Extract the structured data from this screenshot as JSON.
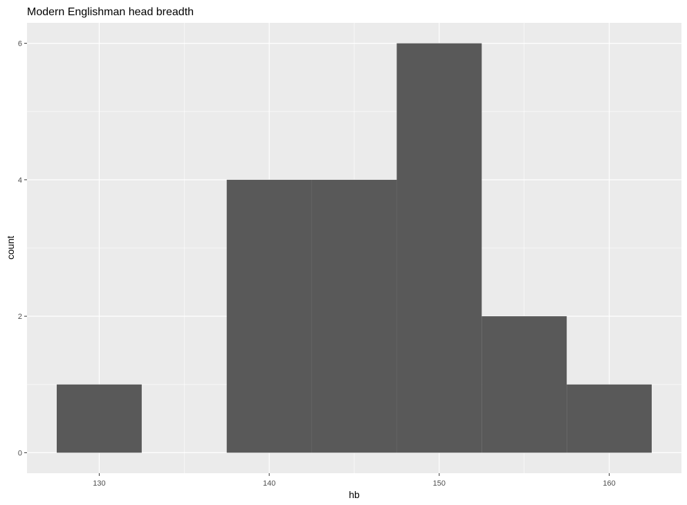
{
  "chart_data": {
    "type": "bar",
    "title": "Modern Englishman head breadth",
    "xlabel": "hb",
    "ylabel": "count",
    "bin_width": 5,
    "bins": [
      {
        "x_start": 127.5,
        "x_end": 132.5,
        "count": 1
      },
      {
        "x_start": 132.5,
        "x_end": 137.5,
        "count": 0
      },
      {
        "x_start": 137.5,
        "x_end": 142.5,
        "count": 4
      },
      {
        "x_start": 142.5,
        "x_end": 147.5,
        "count": 4
      },
      {
        "x_start": 147.5,
        "x_end": 152.5,
        "count": 6
      },
      {
        "x_start": 152.5,
        "x_end": 157.5,
        "count": 2
      },
      {
        "x_start": 157.5,
        "x_end": 162.5,
        "count": 1
      }
    ],
    "x_ticks": [
      130,
      140,
      150,
      160
    ],
    "x_tick_labels": [
      "130",
      "140",
      "150",
      "160"
    ],
    "y_ticks": [
      0,
      2,
      4,
      6
    ],
    "y_tick_labels": [
      "0",
      "2",
      "4",
      "6"
    ],
    "xlim": [
      125.75,
      164.25
    ],
    "ylim": [
      -0.3,
      6.3
    ],
    "grid": true,
    "colors": {
      "panel": "#ebebeb",
      "grid_major": "#ffffff",
      "bar_fill": "#595959",
      "tick_text": "#4d4d4d",
      "tick_mark": "#333333"
    }
  }
}
